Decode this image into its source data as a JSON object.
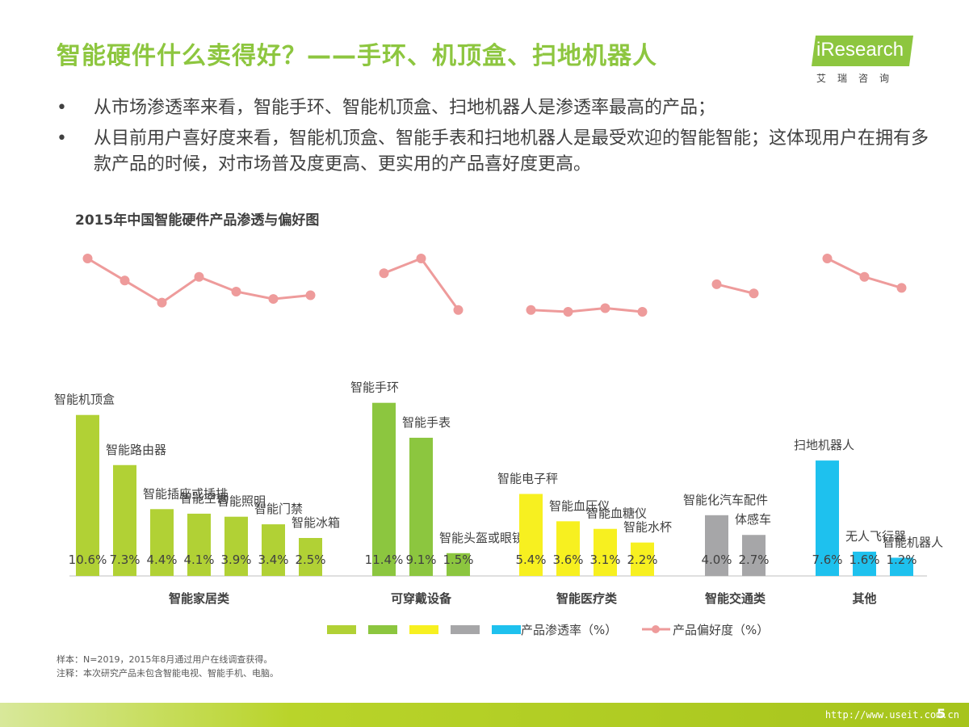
{
  "header": {
    "title": "智能硬件什么卖得好？——手环、机顶盒、扫地机器人",
    "logo_text": "iResearch",
    "logo_sub": "艾瑞咨询"
  },
  "bullets": [
    "从市场渗透率来看，智能手环、智能机顶盒、扫地机器人是渗透率最高的产品；",
    "从目前用户喜好度来看，智能机顶盒、智能手表和扫地机器人是最受欢迎的智能智能；这体现用户在拥有多款产品的时候，对市场普及度更高、更实用的产品喜好度更高。"
  ],
  "bullet_mark": "•",
  "chart_data": {
    "type": "bar",
    "title": "2015年中国智能硬件产品渗透与偏好图",
    "groups": [
      {
        "name": "智能家居类",
        "color": "#b1d135",
        "categories": [
          "智能机顶盒",
          "智能路由器",
          "智能插座或插排",
          "智能空调",
          "智能照明",
          "智能门禁",
          "智能冰箱"
        ],
        "penetration": [
          10.6,
          7.3,
          4.4,
          4.1,
          3.9,
          3.4,
          2.5
        ],
        "penetration_labels": [
          "10.6%",
          "7.3%",
          "4.4%",
          "4.1%",
          "3.9%",
          "3.4%",
          "2.5%"
        ],
        "preference": [
          86,
          80,
          74,
          81,
          77,
          75,
          76
        ]
      },
      {
        "name": "可穿戴设备",
        "color": "#8cc63f",
        "categories": [
          "智能手环",
          "智能手表",
          "智能头盔或眼镜"
        ],
        "penetration": [
          11.4,
          9.1,
          1.5
        ],
        "penetration_labels": [
          "11.4%",
          "9.1%",
          "1.5%"
        ],
        "preference": [
          82,
          86,
          72
        ]
      },
      {
        "name": "智能医疗类",
        "color": "#f7f020",
        "categories": [
          "智能电子秤",
          "智能血压仪",
          "智能血糖仪",
          "智能水杯"
        ],
        "penetration": [
          5.4,
          3.6,
          3.1,
          2.2
        ],
        "penetration_labels": [
          "5.4%",
          "3.6%",
          "3.1%",
          "2.2%"
        ],
        "preference": [
          72,
          71.5,
          72.5,
          71.5
        ]
      },
      {
        "name": "智能交通类",
        "color": "#a6a6a8",
        "categories": [
          "智能化汽车配件",
          "体感车"
        ],
        "penetration": [
          4.0,
          2.7
        ],
        "penetration_labels": [
          "4.0%",
          "2.7%"
        ],
        "preference": [
          79,
          76.5
        ]
      },
      {
        "name": "其他",
        "color": "#1ec1ee",
        "categories": [
          "扫地机器人",
          "无人飞行器",
          "智能机器人"
        ],
        "penetration": [
          7.6,
          1.6,
          1.2
        ],
        "penetration_labels": [
          "7.6%",
          "1.6%",
          "1.2%"
        ],
        "preference": [
          86,
          81,
          78
        ]
      }
    ],
    "legend": {
      "bar_label": "产品渗透率（%）",
      "line_label": "产品偏好度（%）",
      "line_color": "#ee9b9b"
    }
  },
  "footnotes": [
    "样本：N=2019，2015年8月通过用户在线调查获得。",
    "注释：本次研究产品未包含智能电视、智能手机、电脑。"
  ],
  "footer": {
    "url": "http://www.useit.com.cn",
    "page": "5"
  }
}
